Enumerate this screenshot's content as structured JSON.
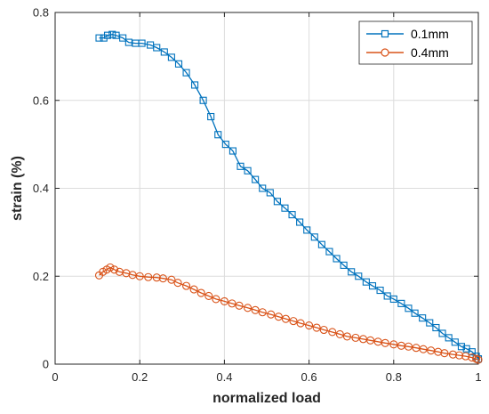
{
  "chart_data": {
    "type": "line",
    "xlabel": "normalized load",
    "ylabel": "strain (%)",
    "xlim": [
      0,
      1
    ],
    "ylim": [
      0,
      0.8
    ],
    "xticks": [
      0,
      0.2,
      0.4,
      0.6,
      0.8,
      1
    ],
    "yticks": [
      0,
      0.2,
      0.4,
      0.6,
      0.8
    ],
    "xtick_labels": [
      "0",
      "0.2",
      "0.4",
      "0.6",
      "0.8",
      "1"
    ],
    "ytick_labels": [
      "0",
      "0.2",
      "0.4",
      "0.6",
      "0.8"
    ],
    "grid": true,
    "legend_position": "top-right",
    "series": [
      {
        "name": "0.1mm",
        "color": "#0072BD",
        "marker": "square",
        "x": [
          0.104,
          0.115,
          0.124,
          0.135,
          0.144,
          0.16,
          0.174,
          0.19,
          0.205,
          0.225,
          0.24,
          0.258,
          0.275,
          0.292,
          0.31,
          0.33,
          0.35,
          0.368,
          0.385,
          0.403,
          0.42,
          0.438,
          0.455,
          0.473,
          0.49,
          0.508,
          0.525,
          0.543,
          0.56,
          0.578,
          0.595,
          0.613,
          0.63,
          0.648,
          0.665,
          0.682,
          0.7,
          0.717,
          0.735,
          0.75,
          0.768,
          0.785,
          0.8,
          0.818,
          0.835,
          0.85,
          0.868,
          0.885,
          0.9,
          0.915,
          0.93,
          0.945,
          0.96,
          0.972,
          0.985,
          0.995,
          1.0
        ],
        "y": [
          0.742,
          0.742,
          0.748,
          0.75,
          0.748,
          0.742,
          0.732,
          0.73,
          0.73,
          0.726,
          0.72,
          0.71,
          0.698,
          0.683,
          0.663,
          0.635,
          0.6,
          0.563,
          0.522,
          0.5,
          0.485,
          0.45,
          0.44,
          0.42,
          0.4,
          0.39,
          0.37,
          0.355,
          0.34,
          0.323,
          0.305,
          0.289,
          0.272,
          0.256,
          0.24,
          0.225,
          0.21,
          0.2,
          0.187,
          0.178,
          0.168,
          0.155,
          0.148,
          0.138,
          0.127,
          0.116,
          0.105,
          0.094,
          0.083,
          0.07,
          0.06,
          0.05,
          0.04,
          0.035,
          0.028,
          0.018,
          0.012
        ]
      },
      {
        "name": "0.4mm",
        "color": "#D95319",
        "marker": "circle",
        "x": [
          0.104,
          0.113,
          0.122,
          0.13,
          0.14,
          0.152,
          0.168,
          0.183,
          0.2,
          0.22,
          0.24,
          0.255,
          0.275,
          0.29,
          0.31,
          0.328,
          0.345,
          0.363,
          0.38,
          0.4,
          0.418,
          0.435,
          0.455,
          0.473,
          0.49,
          0.51,
          0.528,
          0.545,
          0.563,
          0.58,
          0.6,
          0.618,
          0.635,
          0.655,
          0.673,
          0.69,
          0.71,
          0.728,
          0.745,
          0.763,
          0.78,
          0.8,
          0.818,
          0.835,
          0.853,
          0.87,
          0.888,
          0.905,
          0.92,
          0.94,
          0.955,
          0.97,
          0.985,
          0.995,
          1.0
        ],
        "y": [
          0.202,
          0.21,
          0.215,
          0.22,
          0.215,
          0.21,
          0.207,
          0.203,
          0.2,
          0.198,
          0.197,
          0.195,
          0.192,
          0.185,
          0.178,
          0.17,
          0.162,
          0.155,
          0.148,
          0.143,
          0.138,
          0.133,
          0.128,
          0.123,
          0.118,
          0.113,
          0.108,
          0.103,
          0.098,
          0.093,
          0.088,
          0.083,
          0.078,
          0.073,
          0.068,
          0.063,
          0.06,
          0.057,
          0.054,
          0.051,
          0.048,
          0.045,
          0.042,
          0.04,
          0.037,
          0.034,
          0.031,
          0.028,
          0.025,
          0.022,
          0.02,
          0.018,
          0.015,
          0.012,
          0.01
        ]
      }
    ]
  }
}
